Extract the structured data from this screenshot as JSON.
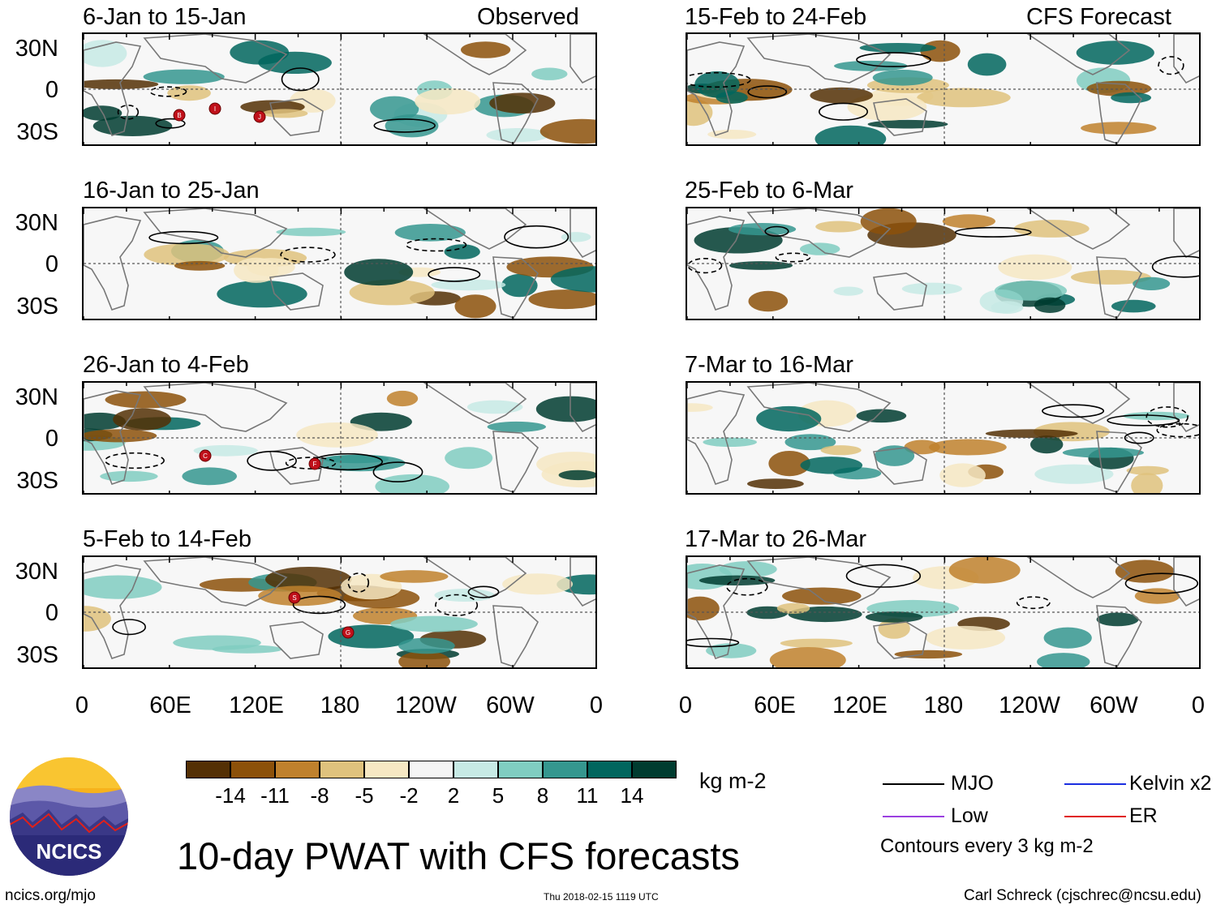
{
  "panels": {
    "left_header_right": "Observed",
    "right_header_right": "CFS Forecast",
    "left": [
      {
        "title": "6-Jan to 15-Jan"
      },
      {
        "title": "16-Jan to 25-Jan"
      },
      {
        "title": "26-Jan to 4-Feb"
      },
      {
        "title": "5-Feb to 14-Feb"
      }
    ],
    "right": [
      {
        "title": "15-Feb to 24-Feb"
      },
      {
        "title": "25-Feb to 6-Mar"
      },
      {
        "title": "7-Mar to 16-Mar"
      },
      {
        "title": "17-Mar to 26-Mar"
      }
    ]
  },
  "axes": {
    "lat_labels": [
      "30N",
      "0",
      "30S"
    ],
    "lon_labels": [
      "0",
      "60E",
      "120E",
      "180",
      "120W",
      "60W",
      "0"
    ]
  },
  "colorbar": {
    "colors": [
      "#543005",
      "#8c510a",
      "#bf812d",
      "#dfc27d",
      "#f6e8c3",
      "#f5f5f5",
      "#c7eae5",
      "#80cdc1",
      "#35978f",
      "#01665e",
      "#003c30"
    ],
    "labels": [
      "-14",
      "-11",
      "-8",
      "-5",
      "-2",
      "2",
      "5",
      "8",
      "11",
      "14"
    ],
    "units": "kg m-2"
  },
  "legend": {
    "items": [
      {
        "label": "MJO",
        "color": "#000000"
      },
      {
        "label": "Kelvin x2",
        "color": "#1a2ee0"
      },
      {
        "label": "Low",
        "color": "#9b40e0"
      },
      {
        "label": "ER",
        "color": "#e01a1a"
      }
    ],
    "note": "Contours every 3 kg m-2"
  },
  "footer": {
    "title": "10-day PWAT with CFS forecasts",
    "logo_text": "NCICS",
    "url": "ncics.org/mjo",
    "timestamp": "Thu 2018-02-15 1119 UTC",
    "credit": "Carl Schreck (cjschrec@ncsu.edu)"
  },
  "storm_markers": [
    {
      "panel": "left-1",
      "labels": [
        "B",
        "I",
        "J"
      ]
    },
    {
      "panel": "left-3",
      "labels": [
        "C",
        "F"
      ]
    },
    {
      "panel": "left-4",
      "labels": [
        "S",
        "G"
      ]
    }
  ]
}
